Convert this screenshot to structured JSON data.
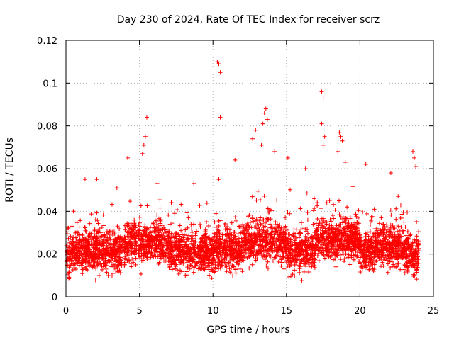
{
  "colors": {
    "series": "#ff0000",
    "axis": "#000000",
    "grid": "#b0b0b0",
    "background": "#ffffff"
  },
  "chart_data": {
    "type": "scatter",
    "title": "Day 230 of 2024, Rate Of TEC Index for receiver scrz",
    "xlabel": "GPS time / hours",
    "ylabel": "ROTI / TECUs",
    "xlim": [
      0,
      25
    ],
    "ylim": [
      0,
      0.12
    ],
    "xticks": [
      0,
      5,
      10,
      15,
      20,
      25
    ],
    "xtick_labels": [
      "0",
      "5",
      "10",
      "15",
      "20",
      "25"
    ],
    "yticks": [
      0,
      0.02,
      0.04,
      0.06,
      0.08,
      0.1,
      0.12
    ],
    "ytick_labels": [
      "0",
      "0.02",
      "0.04",
      "0.06",
      "0.08",
      "0.1",
      "0.12"
    ],
    "grid": true,
    "marker": "+",
    "series": [
      {
        "name": "ROTI",
        "sampling": "dense 0-24 h, typical band 0.008-0.045 TECU/s",
        "outliers": [
          {
            "x": 5.2,
            "y": 0.067
          },
          {
            "x": 5.3,
            "y": 0.071
          },
          {
            "x": 5.4,
            "y": 0.075
          },
          {
            "x": 5.5,
            "y": 0.084
          },
          {
            "x": 4.2,
            "y": 0.065
          },
          {
            "x": 6.2,
            "y": 0.053
          },
          {
            "x": 10.3,
            "y": 0.11
          },
          {
            "x": 10.4,
            "y": 0.109
          },
          {
            "x": 10.5,
            "y": 0.105
          },
          {
            "x": 10.5,
            "y": 0.084
          },
          {
            "x": 10.4,
            "y": 0.055
          },
          {
            "x": 11.5,
            "y": 0.064
          },
          {
            "x": 12.7,
            "y": 0.074
          },
          {
            "x": 12.9,
            "y": 0.078
          },
          {
            "x": 13.4,
            "y": 0.081
          },
          {
            "x": 13.5,
            "y": 0.086
          },
          {
            "x": 13.6,
            "y": 0.088
          },
          {
            "x": 13.7,
            "y": 0.083
          },
          {
            "x": 13.3,
            "y": 0.071
          },
          {
            "x": 14.2,
            "y": 0.068
          },
          {
            "x": 15.1,
            "y": 0.065
          },
          {
            "x": 16.3,
            "y": 0.06
          },
          {
            "x": 17.4,
            "y": 0.096
          },
          {
            "x": 17.5,
            "y": 0.093
          },
          {
            "x": 17.4,
            "y": 0.081
          },
          {
            "x": 17.6,
            "y": 0.075
          },
          {
            "x": 17.5,
            "y": 0.071
          },
          {
            "x": 18.6,
            "y": 0.077
          },
          {
            "x": 18.7,
            "y": 0.075
          },
          {
            "x": 18.8,
            "y": 0.073
          },
          {
            "x": 18.5,
            "y": 0.068
          },
          {
            "x": 19.0,
            "y": 0.063
          },
          {
            "x": 20.4,
            "y": 0.062
          },
          {
            "x": 22.1,
            "y": 0.058
          },
          {
            "x": 23.6,
            "y": 0.068
          },
          {
            "x": 23.7,
            "y": 0.065
          },
          {
            "x": 23.8,
            "y": 0.061
          },
          {
            "x": 1.3,
            "y": 0.055
          },
          {
            "x": 2.1,
            "y": 0.055
          },
          {
            "x": 8.7,
            "y": 0.053
          }
        ]
      }
    ]
  }
}
